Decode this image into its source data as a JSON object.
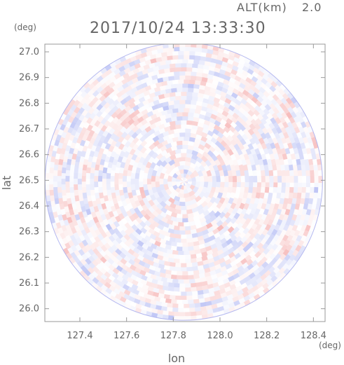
{
  "chart_data": {
    "type": "heatmap",
    "title": "2017/10/24 13:33:30",
    "altitude_label": "ALT(km)",
    "altitude_value": "2.0",
    "xlabel": "lon",
    "ylabel": "lat",
    "x_unit": "(deg)",
    "y_unit": "(deg)",
    "xlim": [
      127.25,
      128.45
    ],
    "ylim": [
      25.95,
      27.03
    ],
    "x_ticks": [
      "127.4",
      "127.6",
      "127.8",
      "128.0",
      "128.2",
      "128.4"
    ],
    "y_ticks": [
      "26.0",
      "26.1",
      "26.2",
      "26.3",
      "26.4",
      "26.5",
      "26.6",
      "26.7",
      "26.8",
      "26.9",
      "27.0"
    ],
    "grid": false,
    "legend": "none",
    "center": {
      "lon": 127.845,
      "lat": 26.495
    },
    "radius_deg_lat": 0.54,
    "colors": {
      "positive": "#f4a6a6",
      "negative": "#a9b2f2",
      "neutral": "#ffffff",
      "text": "#666666",
      "frame": "#999999"
    }
  }
}
